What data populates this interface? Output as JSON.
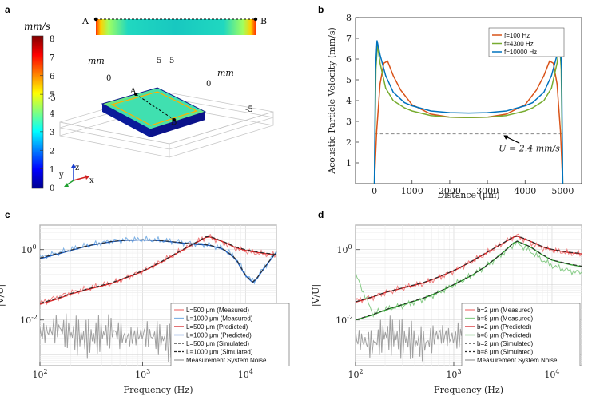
{
  "panels": {
    "a": {
      "label": "a",
      "colorbar": {
        "unit": "mm/s",
        "ticks": [
          "8",
          "7",
          "6",
          "5",
          "4",
          "3",
          "2",
          "1",
          "0"
        ]
      },
      "points": {
        "a": "A",
        "b": "B"
      },
      "axis_unit_1": "mm",
      "axis_unit_2": "mm",
      "tick_labels": [
        "5",
        "0",
        "-5",
        "5",
        "0",
        "-5"
      ],
      "axes_triad": {
        "x": "x",
        "y": "y",
        "z": "z"
      }
    },
    "b": {
      "label": "b"
    },
    "c": {
      "label": "c"
    },
    "d": {
      "label": "d"
    }
  },
  "chart_data": [
    {
      "id": "b",
      "type": "line",
      "xlabel": "Distance (μm)",
      "ylabel": "Acoustic Particle Velocity (mm/s)",
      "xlim": [
        -500,
        5500
      ],
      "ylim": [
        0,
        8
      ],
      "xticks": [
        0,
        1000,
        2000,
        3000,
        4000,
        5000
      ],
      "yticks": [
        1,
        2,
        3,
        4,
        5,
        6,
        7,
        8
      ],
      "annotation": "U = 2.4 mm/s",
      "reference_line": 2.4,
      "series": [
        {
          "name": "f=100 Hz",
          "color": "#d95319",
          "x": [
            0,
            60,
            150,
            250,
            350,
            500,
            700,
            1000,
            1500,
            2000,
            2500,
            3000,
            3500,
            4000,
            4300,
            4500,
            4650,
            4750,
            4850,
            4940,
            5000
          ],
          "y": [
            0,
            2.5,
            4.8,
            5.8,
            5.9,
            5.2,
            4.5,
            3.8,
            3.35,
            3.2,
            3.18,
            3.2,
            3.35,
            3.8,
            4.5,
            5.2,
            5.9,
            5.8,
            4.8,
            2.5,
            0
          ]
        },
        {
          "name": "f=4300 Hz",
          "color": "#77ac30",
          "x": [
            0,
            40,
            80,
            150,
            300,
            500,
            800,
            1000,
            1500,
            2000,
            2500,
            3000,
            3500,
            4000,
            4200,
            4500,
            4700,
            4850,
            4920,
            4960,
            5000
          ],
          "y": [
            0,
            5.5,
            6.7,
            5.8,
            4.6,
            4.0,
            3.65,
            3.5,
            3.28,
            3.2,
            3.18,
            3.2,
            3.28,
            3.5,
            3.65,
            4.0,
            4.6,
            5.8,
            6.7,
            5.5,
            0
          ]
        },
        {
          "name": "f=10000 Hz",
          "color": "#0072bd",
          "x": [
            0,
            30,
            70,
            150,
            300,
            500,
            800,
            1000,
            1500,
            2000,
            2500,
            3000,
            3500,
            4000,
            4200,
            4500,
            4700,
            4850,
            4930,
            4970,
            5000
          ],
          "y": [
            0,
            5.5,
            6.9,
            6.2,
            5.2,
            4.4,
            3.9,
            3.75,
            3.5,
            3.42,
            3.4,
            3.42,
            3.5,
            3.75,
            3.9,
            4.4,
            5.2,
            6.2,
            6.9,
            5.5,
            0
          ]
        }
      ]
    },
    {
      "id": "c",
      "type": "line",
      "xlabel": "Frequency (Hz)",
      "ylabel": "|V/U|",
      "xscale": "log",
      "yscale": "log",
      "xlim": [
        100,
        20000
      ],
      "ylim": [
        0.0005,
        5
      ],
      "xtick_labels": [
        "10^2",
        "10^3",
        "10^4"
      ],
      "ytick_labels": [
        "10^-2",
        "10^0"
      ],
      "series": [
        {
          "name": "L=500 μm  (Measured)",
          "color": "#f08080",
          "style": "noisy",
          "x": [
            100,
            150,
            200,
            300,
            500,
            700,
            1000,
            1500,
            2000,
            3000,
            4300,
            6000,
            8000,
            10000,
            15000,
            20000
          ],
          "y": [
            0.03,
            0.045,
            0.06,
            0.08,
            0.11,
            0.16,
            0.25,
            0.45,
            0.7,
            1.4,
            2.5,
            1.6,
            1.1,
            0.9,
            0.75,
            0.7
          ]
        },
        {
          "name": "L=1000 μm  (Measured)",
          "color": "#7fb2e5",
          "style": "noisy",
          "x": [
            100,
            150,
            200,
            300,
            500,
            700,
            1000,
            1500,
            2000,
            3000,
            4300,
            6000,
            8000,
            10000,
            12000,
            15000,
            20000
          ],
          "y": [
            0.6,
            0.8,
            1.0,
            1.35,
            1.75,
            1.9,
            1.95,
            1.85,
            1.7,
            1.5,
            1.4,
            1.1,
            0.6,
            0.2,
            0.12,
            0.3,
            0.9
          ]
        },
        {
          "name": "L=500 μm  (Predicted)",
          "color": "#d62728",
          "style": "solid",
          "x": [
            100,
            150,
            200,
            300,
            500,
            700,
            1000,
            1500,
            2000,
            3000,
            4300,
            6000,
            8000,
            10000,
            15000,
            20000
          ],
          "y": [
            0.028,
            0.04,
            0.055,
            0.075,
            0.11,
            0.16,
            0.24,
            0.43,
            0.7,
            1.35,
            2.4,
            1.7,
            1.15,
            0.95,
            0.78,
            0.72
          ]
        },
        {
          "name": "L=1000 μm  (Predicted)",
          "color": "#1f5fbf",
          "style": "solid",
          "x": [
            100,
            150,
            200,
            300,
            500,
            700,
            1000,
            1500,
            2000,
            3000,
            4300,
            6000,
            8000,
            10000,
            12000,
            15000,
            20000
          ],
          "y": [
            0.55,
            0.75,
            0.95,
            1.3,
            1.7,
            1.85,
            1.9,
            1.8,
            1.65,
            1.45,
            1.35,
            1.05,
            0.55,
            0.18,
            0.11,
            0.28,
            0.85
          ]
        },
        {
          "name": "L=500 μm  (Simulated)",
          "color": "#2b2b2b",
          "style": "dashed",
          "x": [
            100,
            150,
            200,
            300,
            500,
            700,
            1000,
            1500,
            2000,
            3000,
            4300,
            6000,
            8000,
            10000,
            15000,
            20000
          ],
          "y": [
            0.03,
            0.042,
            0.057,
            0.078,
            0.115,
            0.165,
            0.25,
            0.45,
            0.72,
            1.4,
            2.5,
            1.75,
            1.2,
            1.0,
            0.8,
            0.74
          ]
        },
        {
          "name": "L=1000 μm  (Simulated)",
          "color": "#2b2b2b",
          "style": "dashed",
          "x": [
            100,
            150,
            200,
            300,
            500,
            700,
            1000,
            1500,
            2000,
            3000,
            4300,
            6000,
            8000,
            10000,
            12000,
            15000,
            20000
          ],
          "y": [
            0.58,
            0.78,
            0.98,
            1.32,
            1.72,
            1.88,
            1.92,
            1.82,
            1.68,
            1.48,
            1.38,
            1.08,
            0.58,
            0.19,
            0.115,
            0.29,
            0.88
          ]
        },
        {
          "name": "Measurement System Noise",
          "color": "#a0a0a0",
          "style": "noise",
          "x": [
            100,
            150,
            200,
            300,
            500,
            700,
            1000,
            1500,
            2000,
            3000,
            4000,
            5000
          ],
          "y": [
            0.004,
            0.006,
            0.004,
            0.003,
            0.005,
            0.003,
            0.004,
            0.003,
            0.002,
            0.003,
            0.004,
            0.005
          ]
        }
      ]
    },
    {
      "id": "d",
      "type": "line",
      "xlabel": "Frequency (Hz)",
      "ylabel": "|V/U|",
      "xscale": "log",
      "yscale": "log",
      "xlim": [
        100,
        20000
      ],
      "ylim": [
        0.0005,
        5
      ],
      "xtick_labels": [
        "10^2",
        "10^3",
        "10^4"
      ],
      "ytick_labels": [
        "10^-2",
        "10^0"
      ],
      "series": [
        {
          "name": "b=2 μm (Measured)",
          "color": "#f08080",
          "style": "noisy",
          "x": [
            100,
            150,
            200,
            300,
            500,
            700,
            1000,
            1500,
            2000,
            3000,
            4300,
            6000,
            8000,
            10000,
            15000,
            20000
          ],
          "y": [
            0.035,
            0.045,
            0.06,
            0.08,
            0.11,
            0.16,
            0.25,
            0.45,
            0.7,
            1.4,
            2.6,
            1.6,
            1.1,
            0.95,
            0.8,
            0.75
          ]
        },
        {
          "name": "b=8 μm (Measured)",
          "color": "#88cc88",
          "style": "noisy",
          "x": [
            100,
            150,
            200,
            300,
            500,
            700,
            1000,
            1500,
            2000,
            3000,
            4300,
            6000,
            8000,
            10000,
            15000,
            20000
          ],
          "y": [
            0.2,
            0.015,
            0.02,
            0.025,
            0.04,
            0.06,
            0.1,
            0.18,
            0.3,
            0.7,
            1.6,
            0.9,
            0.5,
            0.35,
            0.25,
            0.22
          ]
        },
        {
          "name": "b=2 μm (Predicted)",
          "color": "#d62728",
          "style": "solid",
          "x": [
            100,
            150,
            200,
            300,
            500,
            700,
            1000,
            1500,
            2000,
            3000,
            4300,
            6000,
            8000,
            10000,
            15000,
            20000
          ],
          "y": [
            0.032,
            0.045,
            0.06,
            0.08,
            0.115,
            0.165,
            0.25,
            0.45,
            0.72,
            1.4,
            2.5,
            1.75,
            1.2,
            1.0,
            0.82,
            0.76
          ]
        },
        {
          "name": "b=8 μm (Predicted)",
          "color": "#2ca02c",
          "style": "solid",
          "x": [
            100,
            150,
            200,
            300,
            500,
            700,
            1000,
            1500,
            2000,
            3000,
            4300,
            6000,
            8000,
            10000,
            15000,
            20000
          ],
          "y": [
            0.01,
            0.014,
            0.019,
            0.027,
            0.042,
            0.062,
            0.1,
            0.18,
            0.3,
            0.72,
            1.8,
            1.2,
            0.7,
            0.5,
            0.38,
            0.33
          ]
        },
        {
          "name": "b=2 μm (Simulated)",
          "color": "#2b2b2b",
          "style": "dashed",
          "x": [
            100,
            150,
            200,
            300,
            500,
            700,
            1000,
            1500,
            2000,
            3000,
            4300,
            6000,
            8000,
            10000,
            15000,
            20000
          ],
          "y": [
            0.033,
            0.046,
            0.061,
            0.082,
            0.118,
            0.168,
            0.255,
            0.46,
            0.74,
            1.42,
            2.55,
            1.78,
            1.22,
            1.02,
            0.84,
            0.78
          ]
        },
        {
          "name": "b=8 μm (Simulated)",
          "color": "#2b2b2b",
          "style": "dashed",
          "x": [
            100,
            150,
            200,
            300,
            500,
            700,
            1000,
            1500,
            2000,
            3000,
            4300,
            6000,
            8000,
            10000,
            15000,
            20000
          ],
          "y": [
            0.0102,
            0.0143,
            0.0195,
            0.0275,
            0.043,
            0.063,
            0.102,
            0.183,
            0.305,
            0.73,
            1.82,
            1.22,
            0.72,
            0.51,
            0.39,
            0.34
          ]
        },
        {
          "name": "Measurement System Noise",
          "color": "#a0a0a0",
          "style": "noise",
          "x": [
            100,
            150,
            200,
            300,
            500,
            700,
            1000,
            1500,
            2000,
            3000,
            4000,
            5000
          ],
          "y": [
            0.003,
            0.002,
            0.004,
            0.003,
            0.002,
            0.004,
            0.003,
            0.005,
            0.002,
            0.003,
            0.004,
            0.003
          ]
        }
      ]
    }
  ]
}
